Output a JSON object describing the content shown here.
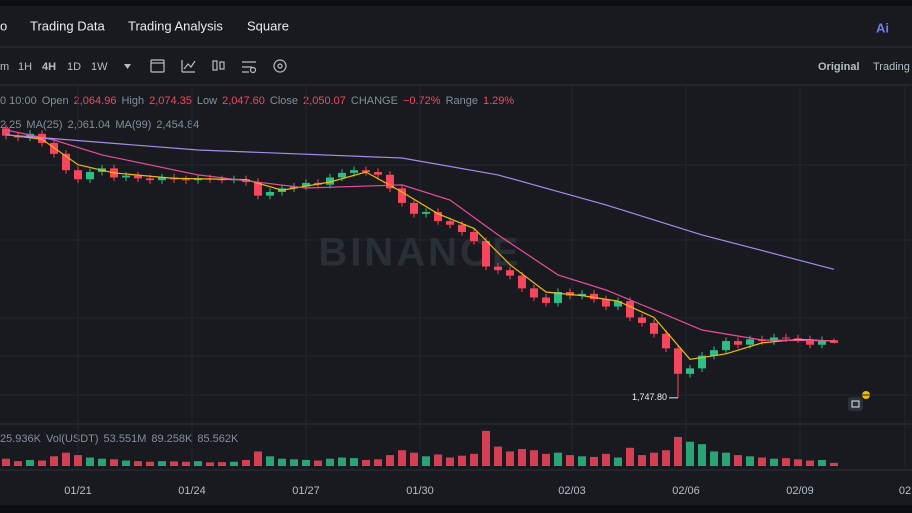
{
  "nav": {
    "items": [
      "o",
      "Trading Data",
      "Trading Analysis",
      "Square"
    ],
    "ai": "Ai"
  },
  "toolbar": {
    "intervals": [
      "m",
      "1H",
      "4H",
      "1D",
      "1W"
    ],
    "views": [
      "Original",
      "Trading"
    ]
  },
  "info": {
    "time": "0 10:00",
    "fields": [
      {
        "label": "Open",
        "value": "2,064.96"
      },
      {
        "label": "High",
        "value": "2,074.35"
      },
      {
        "label": "Low",
        "value": "2,047.60"
      },
      {
        "label": "Close",
        "value": "2,050.07"
      },
      {
        "label": "CHANGE",
        "value": "−0.72%"
      },
      {
        "label": "Range",
        "value": "1.29%"
      }
    ]
  },
  "ma_legend": [
    {
      "value": "2.25",
      "color": "#f0b90b"
    },
    {
      "label": "MA(25)",
      "value": "2,061.04",
      "color": "#e84d9a"
    },
    {
      "label": "MA(99)",
      "value": "2,454.84",
      "color": "#a98be8"
    }
  ],
  "vol_legend": [
    {
      "value": "25.936K",
      "color": "#eaecef"
    },
    {
      "label": "Vol(USDT)",
      "value": "53.551M",
      "color": "#eaecef"
    },
    {
      "value": "89.258K",
      "color": "#6fb3d6"
    },
    {
      "value": "85.562K",
      "color": "#e84d9a"
    }
  ],
  "chart": {
    "type": "candlestick",
    "ylim": [
      1626,
      3331
    ],
    "up_color": "#2ebd85",
    "down_color": "#f6465d",
    "opens": [
      3230,
      3190,
      3180,
      3200,
      3150,
      3090,
      3000,
      2950,
      2990,
      3010,
      2960,
      2970,
      2955,
      2945,
      2960,
      2950,
      2945,
      2955,
      2950,
      2948,
      2950,
      2935,
      2860,
      2880,
      2900,
      2910,
      2930,
      2920,
      2960,
      2985,
      3000,
      2990,
      2975,
      2900,
      2820,
      2760,
      2770,
      2720,
      2700,
      2660,
      2610,
      2470,
      2450,
      2420,
      2350,
      2300,
      2270,
      2330,
      2310,
      2320,
      2290,
      2250,
      2280,
      2190,
      2160,
      2100,
      2020,
      1880,
      1910,
      1980,
      2010,
      2060,
      2040,
      2070,
      2060,
      2080,
      2075,
      2070,
      2040,
      2064.96
    ],
    "highs": [
      3250,
      3210,
      3220,
      3220,
      3170,
      3110,
      3020,
      3010,
      3030,
      3030,
      2990,
      2990,
      2975,
      2980,
      2980,
      2970,
      2975,
      2975,
      2970,
      2970,
      2970,
      2955,
      2900,
      2920,
      2930,
      2950,
      2950,
      2980,
      3005,
      3020,
      3020,
      3010,
      2995,
      2920,
      2840,
      2790,
      2790,
      2740,
      2720,
      2680,
      2630,
      2490,
      2470,
      2440,
      2370,
      2320,
      2350,
      2350,
      2340,
      2340,
      2310,
      2300,
      2300,
      2210,
      2180,
      2120,
      2040,
      1930,
      2000,
      2030,
      2080,
      2080,
      2090,
      2090,
      2100,
      2100,
      2095,
      2090,
      2085,
      2074.35
    ],
    "lows": [
      3170,
      3160,
      3160,
      3130,
      3070,
      2980,
      2930,
      2930,
      2970,
      2940,
      2940,
      2935,
      2925,
      2925,
      2930,
      2925,
      2925,
      2930,
      2928,
      2928,
      2915,
      2840,
      2840,
      2860,
      2880,
      2890,
      2900,
      2900,
      2940,
      2965,
      2970,
      2955,
      2880,
      2800,
      2740,
      2740,
      2700,
      2680,
      2640,
      2590,
      2450,
      2430,
      2400,
      2330,
      2280,
      2250,
      2250,
      2290,
      2290,
      2270,
      2230,
      2230,
      2170,
      2140,
      2080,
      2000,
      1747.8,
      1860,
      1890,
      1960,
      1990,
      2020,
      2020,
      2040,
      2040,
      2055,
      2050,
      2020,
      2020,
      2047.6
    ],
    "closes": [
      3190,
      3180,
      3200,
      3150,
      3090,
      3000,
      2950,
      2990,
      3010,
      2960,
      2970,
      2955,
      2945,
      2960,
      2950,
      2945,
      2955,
      2950,
      2948,
      2950,
      2935,
      2860,
      2880,
      2900,
      2910,
      2930,
      2920,
      2960,
      2985,
      3000,
      2990,
      2975,
      2900,
      2820,
      2760,
      2770,
      2720,
      2700,
      2660,
      2610,
      2470,
      2450,
      2420,
      2350,
      2300,
      2270,
      2330,
      2310,
      2320,
      2290,
      2250,
      2280,
      2190,
      2160,
      2100,
      2020,
      1880,
      1910,
      1980,
      2010,
      2060,
      2040,
      2070,
      2060,
      2080,
      2075,
      2070,
      2040,
      2064.96,
      2050.07
    ],
    "ma": [
      {
        "color": "#f0b90b",
        "index": [
          0,
          3,
          6,
          9,
          14,
          20,
          23,
          27,
          30,
          33,
          36,
          39,
          42,
          45,
          48,
          51,
          54,
          57,
          60,
          63,
          66,
          69
        ],
        "values": [
          3195,
          3170,
          3030,
          2985,
          2955,
          2948,
          2890,
          2935,
          2990,
          2880,
          2760,
          2680,
          2480,
          2330,
          2310,
          2280,
          2190,
          1960,
          1990,
          2050,
          2070,
          2060
        ]
      },
      {
        "color": "#e84d9a",
        "index": [
          0,
          4,
          8,
          16,
          25,
          33,
          37,
          41,
          46,
          50,
          54,
          58,
          63,
          69
        ],
        "values": [
          3221,
          3166,
          3084,
          2974,
          2902,
          2919,
          2836,
          2644,
          2424,
          2341,
          2232,
          2121,
          2066,
          2061.04
        ]
      },
      {
        "color": "#a98be8",
        "index": [
          0,
          16,
          33,
          41,
          50,
          58,
          69
        ],
        "values": [
          3194,
          3111,
          3067,
          2974,
          2809,
          2644,
          2454.84
        ]
      }
    ],
    "min_marker": {
      "value": 1747.8,
      "label": "1,747.80"
    },
    "volume": {
      "ylim": [
        0,
        330
      ],
      "values": [
        60,
        40,
        50,
        45,
        80,
        110,
        90,
        70,
        60,
        55,
        45,
        40,
        35,
        40,
        38,
        35,
        40,
        30,
        32,
        35,
        50,
        120,
        80,
        60,
        55,
        50,
        45,
        60,
        70,
        65,
        50,
        55,
        90,
        130,
        110,
        80,
        95,
        70,
        85,
        100,
        290,
        160,
        120,
        140,
        130,
        100,
        110,
        90,
        80,
        75,
        100,
        70,
        150,
        90,
        110,
        130,
        240,
        200,
        180,
        120,
        110,
        90,
        80,
        70,
        60,
        65,
        55,
        45,
        50,
        25.936
      ]
    },
    "dates": [
      "01/21",
      "01/24",
      "01/27",
      "01/30",
      "02/03",
      "02/06",
      "02/09",
      "02"
    ],
    "watermark": "BINANCE"
  }
}
